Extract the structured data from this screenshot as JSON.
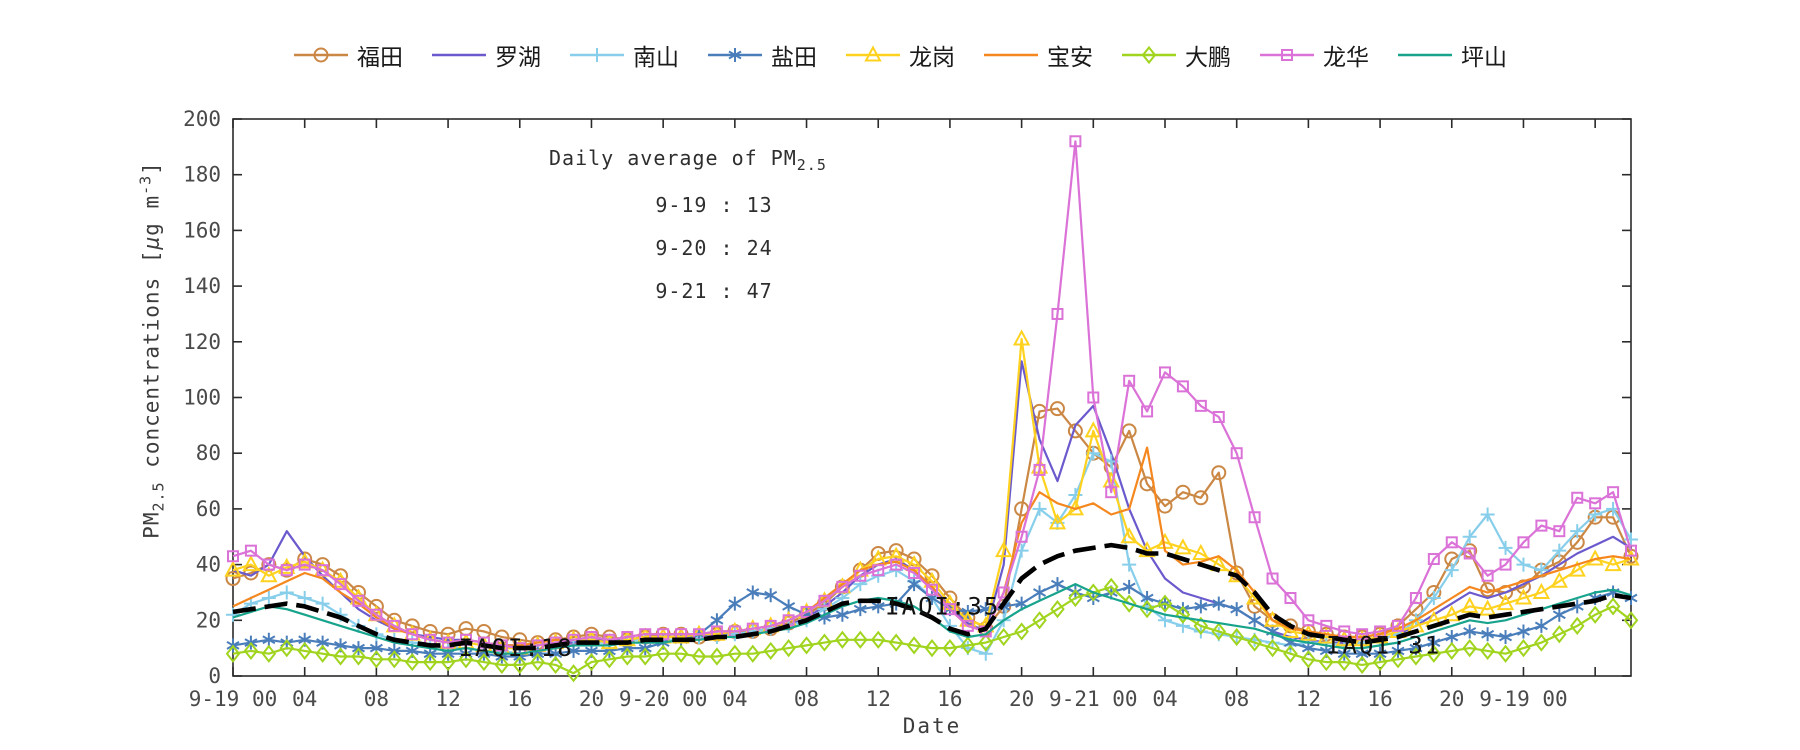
{
  "figure": {
    "xlabel": "Date",
    "ylabel": {
      "p1": "PM",
      "sub": "2.5",
      "p2": " concentrations [",
      "mu": "μ",
      "p3": "g m",
      "sup": "-3",
      "p4": "]"
    },
    "background": "#ffffff",
    "axis_color": "#2b2b2b",
    "tick_label_color": "#4a4a4a"
  },
  "annotations": {
    "daily_average": {
      "title_main": "Daily average of PM",
      "title_sub": "2.5",
      "lines": [
        "9-19 : 13",
        "9-20 : 24",
        "9-21 : 47"
      ]
    },
    "iaqi": [
      {
        "text": "IAQI:18",
        "hour": 15.8,
        "value": 10
      },
      {
        "text": "IAQI:35",
        "hour": 39.6,
        "value": 25
      },
      {
        "text": "IAQI:31",
        "hour": 64.2,
        "value": 11
      }
    ]
  },
  "chart_data": {
    "type": "line",
    "title": "",
    "xlabel": "Date",
    "ylabel": "PM2.5 concentrations [ug m^-3]",
    "grid": false,
    "legend_position": "top",
    "x_unit": "hours since 9-19 00:00, one point per hour",
    "xlim": [
      0,
      78
    ],
    "ylim": [
      0,
      200
    ],
    "yticks": [
      0,
      20,
      40,
      60,
      80,
      100,
      120,
      140,
      160,
      180,
      200
    ],
    "xticks": {
      "hours": [
        0,
        4,
        8,
        12,
        16,
        20,
        24,
        28,
        32,
        36,
        40,
        44,
        48,
        52,
        56,
        60,
        64,
        68,
        72
      ],
      "labels": [
        "9-19 00",
        "04",
        "08",
        "12",
        "16",
        "20",
        "9-20 00",
        "04",
        "08",
        "12",
        "16",
        "20",
        "9-21 00",
        "04",
        "08",
        "12",
        "16",
        "20",
        "9-19 00"
      ],
      "extra_tick_hours": [
        76
      ]
    },
    "series": [
      {
        "key": "futian",
        "name": "福田",
        "color": "#CB8744",
        "marker": "circle",
        "width": 2.2,
        "values": [
          35,
          37,
          40,
          38,
          42,
          40,
          36,
          30,
          25,
          20,
          18,
          16,
          15,
          17,
          16,
          14,
          13,
          12,
          13,
          14,
          15,
          14,
          13,
          14,
          15,
          15,
          14,
          15,
          16,
          16,
          17,
          19,
          22,
          26,
          32,
          38,
          44,
          45,
          42,
          36,
          28,
          21,
          17,
          25,
          60,
          95,
          96,
          88,
          80,
          75,
          88,
          69,
          61,
          66,
          64,
          73,
          37,
          25,
          20,
          18,
          16,
          15,
          14,
          14,
          15,
          18,
          24,
          30,
          42,
          45,
          31,
          30,
          32,
          38,
          41,
          48,
          57,
          57,
          43
        ]
      },
      {
        "key": "luohu",
        "name": "罗湖",
        "color": "#6A5ACD",
        "marker": "none",
        "width": 2.2,
        "values": [
          38,
          36,
          40,
          52,
          43,
          36,
          30,
          24,
          20,
          17,
          15,
          14,
          13,
          13,
          12,
          11,
          11,
          11,
          12,
          12,
          13,
          13,
          13,
          14,
          14,
          14,
          14,
          15,
          15,
          16,
          17,
          18,
          21,
          25,
          30,
          36,
          40,
          42,
          38,
          32,
          25,
          19,
          16,
          40,
          113,
          85,
          70,
          90,
          97,
          80,
          60,
          45,
          35,
          30,
          28,
          26,
          24,
          20,
          16,
          14,
          13,
          12,
          12,
          12,
          13,
          15,
          18,
          22,
          26,
          30,
          28,
          30,
          33,
          36,
          40,
          44,
          47,
          50,
          46
        ]
      },
      {
        "key": "nanshan",
        "name": "南山",
        "color": "#87CEEB",
        "marker": "plus",
        "width": 2.2,
        "values": [
          22,
          26,
          28,
          30,
          28,
          26,
          22,
          18,
          15,
          13,
          12,
          11,
          10,
          10,
          9,
          9,
          8,
          9,
          10,
          11,
          12,
          12,
          13,
          13,
          13,
          13,
          14,
          14,
          15,
          16,
          17,
          18,
          20,
          24,
          28,
          33,
          36,
          38,
          34,
          28,
          18,
          10,
          8,
          20,
          45,
          60,
          55,
          65,
          80,
          77,
          40,
          25,
          20,
          18,
          16,
          15,
          14,
          13,
          12,
          11,
          12,
          12,
          11,
          12,
          13,
          15,
          20,
          28,
          38,
          50,
          58,
          46,
          40,
          38,
          45,
          52,
          58,
          60,
          49
        ]
      },
      {
        "key": "yantian",
        "name": "盐田",
        "color": "#4A7EBB",
        "marker": "asterisk",
        "width": 2.2,
        "values": [
          11,
          12,
          13,
          12,
          13,
          12,
          11,
          10,
          10,
          9,
          9,
          8,
          8,
          8,
          8,
          7,
          7,
          8,
          8,
          9,
          9,
          9,
          10,
          10,
          12,
          13,
          15,
          20,
          26,
          30,
          29,
          25,
          22,
          21,
          22,
          24,
          25,
          26,
          33,
          28,
          24,
          23,
          24,
          25,
          26,
          30,
          33,
          30,
          28,
          30,
          32,
          28,
          26,
          24,
          25,
          26,
          24,
          20,
          16,
          12,
          10,
          9,
          8,
          8,
          8,
          9,
          10,
          12,
          14,
          16,
          15,
          14,
          16,
          18,
          22,
          25,
          28,
          30,
          28
        ]
      },
      {
        "key": "longgang",
        "name": "龙岗",
        "color": "#FFD21F",
        "marker": "triangle",
        "width": 2.2,
        "values": [
          38,
          40,
          36,
          39,
          41,
          38,
          34,
          28,
          22,
          18,
          15,
          13,
          12,
          12,
          11,
          10,
          10,
          11,
          12,
          13,
          13,
          12,
          13,
          14,
          14,
          14,
          15,
          15,
          16,
          17,
          18,
          20,
          23,
          27,
          32,
          38,
          42,
          43,
          40,
          34,
          26,
          20,
          18,
          45,
          121,
          75,
          55,
          60,
          88,
          70,
          50,
          45,
          48,
          46,
          44,
          40,
          36,
          28,
          20,
          16,
          15,
          14,
          13,
          13,
          14,
          16,
          18,
          20,
          22,
          25,
          24,
          26,
          28,
          30,
          34,
          38,
          42,
          40,
          42
        ]
      },
      {
        "key": "baoan",
        "name": "宝安",
        "color": "#F5871F",
        "marker": "none",
        "width": 2.2,
        "values": [
          25,
          28,
          31,
          34,
          37,
          35,
          30,
          26,
          21,
          17,
          15,
          13,
          12,
          13,
          12,
          11,
          11,
          12,
          13,
          13,
          14,
          13,
          14,
          15,
          15,
          15,
          15,
          16,
          16,
          17,
          18,
          20,
          23,
          28,
          33,
          38,
          40,
          41,
          38,
          32,
          24,
          18,
          16,
          30,
          55,
          66,
          62,
          60,
          62,
          58,
          60,
          82,
          45,
          40,
          41,
          43,
          38,
          30,
          20,
          17,
          16,
          15,
          14,
          14,
          15,
          17,
          20,
          24,
          28,
          32,
          30,
          32,
          34,
          36,
          38,
          40,
          42,
          43,
          42
        ]
      },
      {
        "key": "dapeng",
        "name": "大鹏",
        "color": "#A0D41E",
        "marker": "diamond",
        "width": 2.2,
        "values": [
          8,
          9,
          8,
          10,
          9,
          8,
          7,
          7,
          6,
          6,
          5,
          5,
          5,
          6,
          5,
          4,
          4,
          5,
          4,
          1,
          5,
          6,
          7,
          7,
          8,
          8,
          7,
          7,
          8,
          8,
          9,
          10,
          11,
          12,
          13,
          13,
          13,
          12,
          11,
          10,
          10,
          11,
          12,
          14,
          16,
          20,
          24,
          28,
          30,
          32,
          26,
          24,
          26,
          22,
          18,
          16,
          14,
          12,
          10,
          8,
          6,
          5,
          5,
          4,
          5,
          6,
          7,
          8,
          9,
          10,
          9,
          8,
          10,
          12,
          15,
          18,
          22,
          25,
          20
        ]
      },
      {
        "key": "longhua",
        "name": "龙华",
        "color": "#DB72D8",
        "marker": "square",
        "width": 2.2,
        "values": [
          43,
          45,
          40,
          38,
          40,
          38,
          33,
          27,
          22,
          18,
          15,
          13,
          12,
          13,
          12,
          11,
          10,
          11,
          12,
          13,
          14,
          13,
          14,
          15,
          15,
          15,
          15,
          16,
          16,
          17,
          18,
          20,
          23,
          27,
          32,
          36,
          38,
          40,
          37,
          31,
          24,
          18,
          16,
          30,
          50,
          74,
          130,
          192,
          100,
          66,
          106,
          95,
          109,
          104,
          97,
          93,
          80,
          57,
          35,
          28,
          20,
          18,
          16,
          15,
          16,
          18,
          28,
          42,
          48,
          44,
          36,
          40,
          48,
          54,
          52,
          64,
          62,
          66,
          45
        ]
      },
      {
        "key": "pingshan",
        "name": "坪山",
        "color": "#18A48C",
        "marker": "none",
        "width": 2.2,
        "values": [
          21,
          23,
          25,
          24,
          22,
          20,
          18,
          16,
          14,
          12,
          11,
          10,
          9,
          10,
          9,
          8,
          8,
          9,
          10,
          11,
          11,
          11,
          12,
          12,
          12,
          13,
          13,
          14,
          14,
          15,
          16,
          17,
          19,
          22,
          25,
          27,
          28,
          27,
          25,
          21,
          16,
          14,
          15,
          20,
          24,
          27,
          30,
          33,
          30,
          28,
          26,
          24,
          22,
          21,
          20,
          19,
          18,
          17,
          15,
          13,
          12,
          11,
          10,
          10,
          11,
          12,
          14,
          16,
          18,
          20,
          19,
          20,
          22,
          24,
          26,
          28,
          30,
          31,
          29
        ]
      },
      {
        "key": "mean",
        "name": "mean",
        "color": "#000000",
        "marker": "none",
        "width": 4.6,
        "dash": "23 9",
        "in_legend": false,
        "values": [
          23,
          24,
          25,
          26,
          25,
          23,
          21,
          18,
          15,
          13,
          12,
          11,
          11,
          12,
          11,
          10,
          10,
          10,
          11,
          12,
          12,
          12,
          12,
          13,
          13,
          13,
          13,
          14,
          14,
          15,
          16,
          18,
          20,
          23,
          26,
          27,
          27,
          26,
          24,
          21,
          17,
          15,
          17,
          26,
          35,
          40,
          43,
          45,
          46,
          47,
          46,
          44,
          44,
          42,
          40,
          38,
          36,
          30,
          22,
          18,
          15,
          14,
          13,
          12,
          13,
          14,
          16,
          18,
          20,
          22,
          21,
          22,
          23,
          24,
          25,
          26,
          27,
          29,
          28
        ]
      }
    ]
  }
}
